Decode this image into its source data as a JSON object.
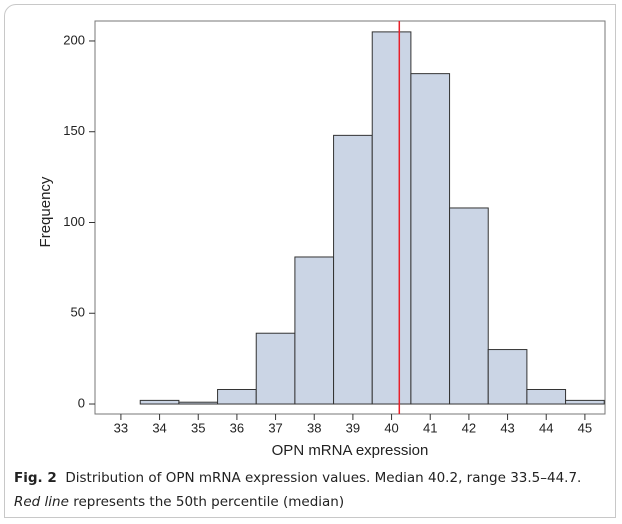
{
  "chart_data": {
    "type": "histogram",
    "xlabel": "OPN mRNA expression",
    "ylabel": "Frequency",
    "bins": [
      32.5,
      33.5,
      34.5,
      35.5,
      36.5,
      37.5,
      38.5,
      39.5,
      40.5,
      41.5,
      42.5,
      43.5,
      44.5,
      45.5
    ],
    "values": [
      0,
      2,
      1,
      8,
      39,
      81,
      148,
      205,
      182,
      108,
      30,
      8,
      2
    ],
    "color": "#cbd5e5",
    "edge_color": "#333333",
    "median_line": 40.2,
    "median_color": "#e8202a",
    "xlim": [
      32.33,
      45.52
    ],
    "xticks": [
      33,
      34,
      35,
      36,
      37,
      38,
      39,
      40,
      41,
      42,
      43,
      44,
      45
    ],
    "ylim": [
      -5.5,
      211
    ],
    "yticks": [
      0,
      50,
      100,
      150,
      200
    ]
  },
  "caption": {
    "label": "Fig. 2",
    "text": "Distribution of OPN mRNA expression values. Median 40.2, range 33.5–44.7.",
    "emphasis": "Red line",
    "rest": "represents the 50th percentile (median)"
  }
}
